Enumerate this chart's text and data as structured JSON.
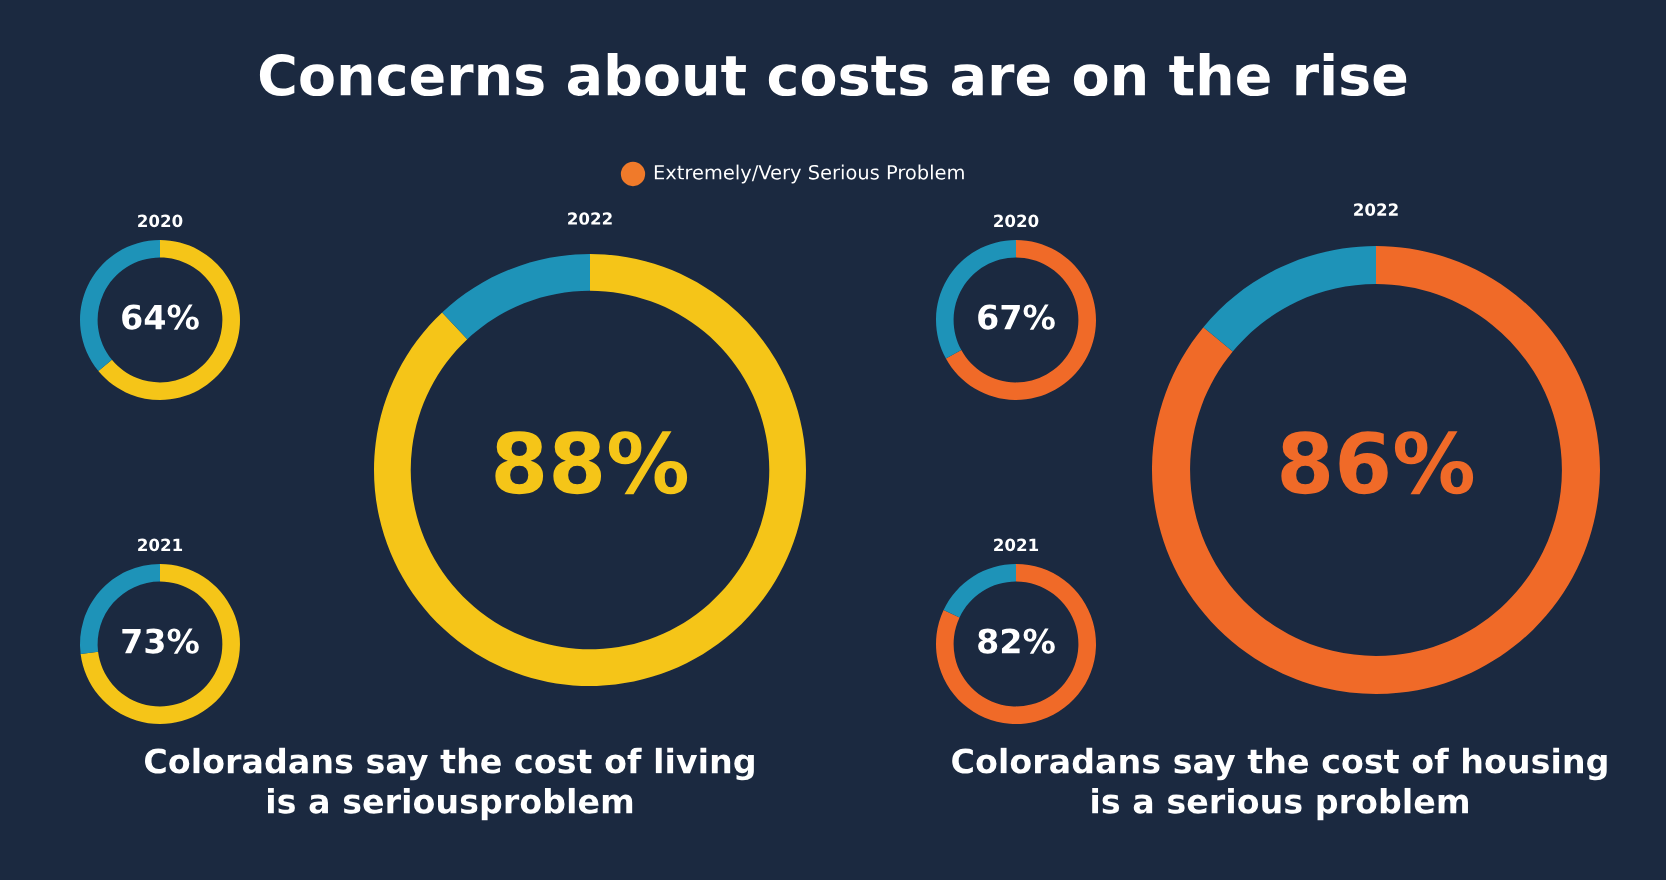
{
  "chart_data": [
    {
      "type": "other",
      "title": "Concerns about costs are on the rise",
      "annotations": [
        "Extremely/Very Serious Problem",
        "Coloradans say the cost of living\nis a seriousproblem",
        "Coloradans say the cost of housing\nis a serious problem"
      ],
      "colors": [
        "#f07a2a"
      ]
    },
    {
      "type": "donut",
      "title": "2020",
      "categories": [
        null,
        null
      ],
      "values": [
        64,
        36
      ],
      "colors": [
        "#f5c518",
        "#1e93b8"
      ],
      "value_labels": [
        "64%",
        null
      ]
    },
    {
      "type": "donut",
      "title": "2021",
      "categories": [
        null,
        null
      ],
      "values": [
        73,
        27
      ],
      "colors": [
        "#f5c518",
        "#1e93b8"
      ],
      "value_labels": [
        "73%",
        null
      ]
    },
    {
      "type": "donut",
      "title": "2022",
      "categories": [
        null,
        null
      ],
      "values": [
        88,
        12
      ],
      "colors": [
        "#f5c518",
        "#1e93b8"
      ],
      "value_labels": [
        "88%",
        null
      ]
    },
    {
      "type": "donut",
      "title": "2020",
      "categories": [
        null,
        null
      ],
      "values": [
        67,
        33
      ],
      "colors": [
        "#f06a28",
        "#1e93b8"
      ],
      "value_labels": [
        "67%",
        null
      ]
    },
    {
      "type": "donut",
      "title": "2021",
      "categories": [
        null,
        null
      ],
      "values": [
        82,
        18
      ],
      "colors": [
        "#f06a28",
        "#1e93b8"
      ],
      "value_labels": [
        "82%",
        null
      ]
    },
    {
      "type": "donut",
      "title": "2022",
      "categories": [
        null,
        null
      ],
      "values": [
        86,
        14
      ],
      "colors": [
        "#f06a28",
        "#1e93b8"
      ],
      "value_labels": [
        "86%",
        null
      ]
    }
  ]
}
